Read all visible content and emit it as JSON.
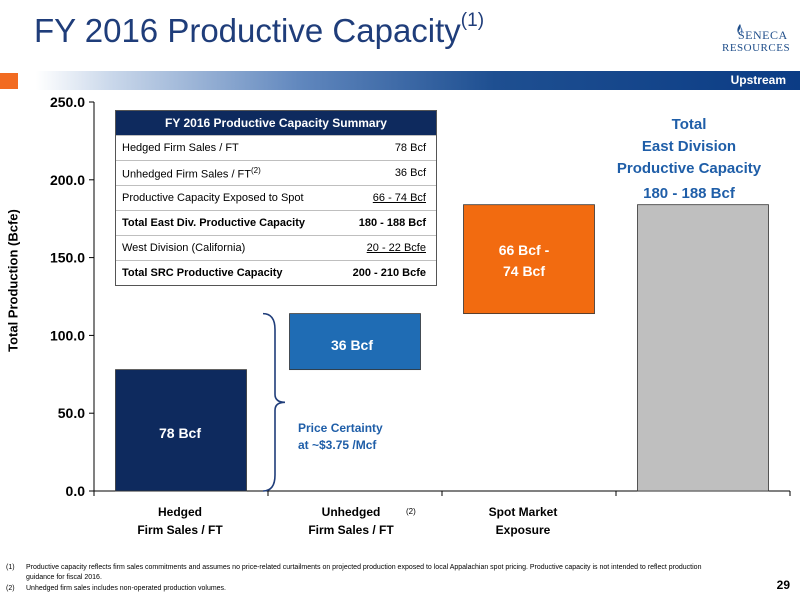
{
  "header": {
    "title": "FY 2016 Productive Capacity",
    "title_note": "(1)",
    "band_label": "Upstream",
    "logo_line1": "SENECA",
    "logo_line2": "RESOURCES"
  },
  "summary_table": {
    "title": "FY 2016 Productive Capacity Summary",
    "rows": [
      {
        "label": "Hedged Firm Sales / FT",
        "note": "",
        "value": "78 Bcf",
        "bold": false,
        "underline": false
      },
      {
        "label": "Unhedged Firm Sales / FT",
        "note": "(2)",
        "value": "36 Bcf",
        "bold": false,
        "underline": false
      },
      {
        "label": "Productive Capacity Exposed to Spot",
        "note": "",
        "value": "66 - 74 Bcf",
        "bold": false,
        "underline": true
      },
      {
        "label": "Total East Div. Productive Capacity",
        "note": "",
        "value": "180 - 188 Bcf",
        "bold": true,
        "underline": false
      },
      {
        "label": "West Division (California)",
        "note": "",
        "value": "20 - 22 Bcfe",
        "bold": false,
        "underline": true
      },
      {
        "label": "Total SRC Productive Capacity",
        "note": "",
        "value": "200 - 210 Bcfe",
        "bold": true,
        "underline": false
      }
    ]
  },
  "annotations": {
    "total_line1": "Total",
    "total_line2": "East Division",
    "total_line3": "Productive Capacity",
    "total_range": "180 - 188 Bcf",
    "price_line1": "Price Certainty",
    "price_line2": "at ~$3.75 /Mcf",
    "spot_label_line1": "66 Bcf -",
    "spot_label_line2": "74 Bcf"
  },
  "x_labels": [
    {
      "line1": "Hedged",
      "line2": "Firm Sales / FT"
    },
    {
      "line1": "Unhedged",
      "line2": "Firm Sales / FT"
    },
    {
      "line1": "Spot  Market",
      "line2": "Exposure"
    },
    {
      "line1": "",
      "line2": ""
    }
  ],
  "x_label_note": "(2)",
  "footnotes": [
    {
      "num": "(1)",
      "text": "Productive capacity reflects firm sales commitments and assumes no price-related curtailments on projected production exposed to local Appalachian spot pricing.  Productive capacity is not intended to reflect production guidance for fiscal 2016."
    },
    {
      "num": "(2)",
      "text": "Unhedged firm sales includes non-operated production volumes."
    }
  ],
  "page_number": "29",
  "chart_data": {
    "type": "bar",
    "subtype": "waterfall",
    "categories": [
      "Hedged Firm Sales / FT",
      "Unhedged Firm Sales / FT",
      "Spot Market Exposure",
      ""
    ],
    "bars": [
      {
        "base": 0,
        "top": 78,
        "label": "78 Bcf",
        "color": "#0e2a5e"
      },
      {
        "base": 78,
        "top": 114,
        "label": "36 Bcf",
        "color": "#1f6cb4"
      },
      {
        "base": 114,
        "top": 184,
        "label": "66 Bcf - 74 Bcf",
        "color": "#f26b10"
      },
      {
        "base": 0,
        "top": 184,
        "label": "180 - 188 Bcf",
        "color": "#bfbfbf"
      }
    ],
    "ylabel": "Total Production (Bcfe)",
    "ylim": [
      0,
      250
    ],
    "yticks": [
      "0.0",
      "50.0",
      "100.0",
      "150.0",
      "200.0",
      "250.0"
    ],
    "grid": false
  },
  "colors": {
    "title": "#1f3d7a",
    "accent_orange": "#f26b21",
    "annotation_blue": "#1f5ea8"
  }
}
